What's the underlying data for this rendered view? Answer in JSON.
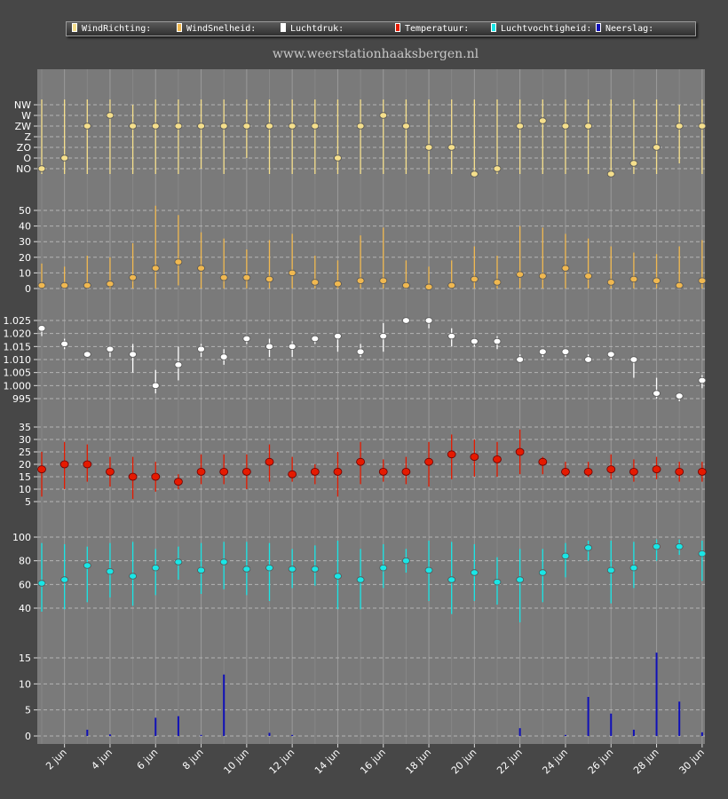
{
  "site_title": "www.weerstationhaaksbergen.nl",
  "legend": [
    {
      "label": "WindRichting:",
      "color": "#f5df8c"
    },
    {
      "label": "WindSnelheid:",
      "color": "#f0b850"
    },
    {
      "label": "Luchtdruk:",
      "color": "#ffffff"
    },
    {
      "label": "Temperatuur:",
      "color": "#e51a00"
    },
    {
      "label": "Luchtvochtigheid:",
      "color": "#19e6e6"
    },
    {
      "label": "Neerslag:",
      "color": "#1010b8"
    }
  ],
  "chart_data": {
    "type": "line",
    "x": [
      "1 jun",
      "2 jun",
      "3 jun",
      "4 jun",
      "5 jun",
      "6 jun",
      "7 jun",
      "8 jun",
      "9 jun",
      "10 jun",
      "11 jun",
      "12 jun",
      "13 jun",
      "14 jun",
      "15 jun",
      "16 jun",
      "17 jun",
      "18 jun",
      "19 jun",
      "20 jun",
      "21 jun",
      "22 jun",
      "23 jun",
      "24 jun",
      "25 jun",
      "26 jun",
      "27 jun",
      "28 jun",
      "29 jun",
      "30 jun"
    ],
    "x_tick_labels": [
      "2 jun",
      "4 jun",
      "6 jun",
      "8 jun",
      "10 jun",
      "12 jun",
      "14 jun",
      "16 jun",
      "18 jun",
      "20 jun",
      "22 jun",
      "24 jun",
      "26 jun",
      "28 jun",
      "30 jun"
    ],
    "panels": [
      {
        "name": "WindRichting",
        "type": "range-point",
        "color": "#f5df8c",
        "yticks": [
          "NO",
          "O",
          "ZO",
          "Z",
          "ZW",
          "W",
          "NW"
        ],
        "yrange": [
          0.5,
          7.5
        ],
        "values": [
          1,
          2,
          5,
          6,
          5,
          5,
          5,
          5,
          5,
          5,
          5,
          5,
          5,
          2,
          5,
          6,
          5,
          3,
          3,
          0.5,
          1,
          5,
          5.5,
          5,
          5,
          0.5,
          1.5,
          3,
          5,
          5
        ],
        "low": [
          0.5,
          0.5,
          0.5,
          0.5,
          0.5,
          0.5,
          0.5,
          1,
          0.5,
          2,
          0.5,
          0.5,
          0.5,
          0.5,
          0.5,
          0.5,
          0.5,
          0.5,
          0.5,
          0.5,
          0.5,
          0.5,
          0.5,
          0.5,
          0.5,
          0.5,
          0.5,
          0.5,
          1.5,
          0.5
        ],
        "high": [
          7.5,
          7.5,
          7.5,
          7.5,
          7,
          7.5,
          7.5,
          7.5,
          7.5,
          7.5,
          7.5,
          7.5,
          7.5,
          7.5,
          7.5,
          7.5,
          7.5,
          7.5,
          7.5,
          7.5,
          7.5,
          7.5,
          7.5,
          7.5,
          7.5,
          7.5,
          7.5,
          7.5,
          7,
          7.5
        ]
      },
      {
        "name": "WindSnelheid",
        "type": "range-point",
        "color": "#f0b850",
        "yticks": [
          0,
          10,
          20,
          30,
          40,
          50
        ],
        "yrange": [
          0,
          55
        ],
        "values": [
          2,
          2,
          2,
          3,
          7,
          13,
          17,
          13,
          7,
          7,
          6,
          10,
          4,
          3,
          5,
          5,
          2,
          1,
          2,
          6,
          4,
          9,
          8,
          13,
          8,
          4,
          6,
          5,
          2,
          5
        ],
        "low": [
          0,
          0,
          0,
          0,
          0,
          0,
          2,
          0,
          0,
          0,
          0,
          0,
          0,
          0,
          0,
          0,
          0,
          0,
          0,
          0,
          0,
          0,
          0,
          0,
          0,
          0,
          0,
          0,
          0,
          0
        ],
        "high": [
          16,
          14,
          21,
          20,
          29,
          53,
          47,
          36,
          32,
          25,
          31,
          35,
          21,
          18,
          34,
          39,
          18,
          14,
          18,
          27,
          21,
          40,
          39,
          35,
          32,
          27,
          23,
          22,
          27,
          31
        ]
      },
      {
        "name": "Luchtdruk",
        "type": "range-point",
        "color": "#ffffff",
        "yticks": [
          "995",
          "1.000",
          "1.005",
          "1.010",
          "1.015",
          "1.020",
          "1.025"
        ],
        "ytick_values": [
          995,
          1000,
          1005,
          1010,
          1015,
          1020,
          1025
        ],
        "yrange": [
          990,
          1030
        ],
        "values": [
          1022,
          1016,
          1012,
          1014,
          1012,
          1000,
          1008,
          1014,
          1011,
          1018,
          1015,
          1015,
          1018,
          1019,
          1013,
          1019,
          1025,
          1025,
          1019,
          1017,
          1017,
          1010,
          1013,
          1013,
          1010,
          1012,
          1010,
          997,
          996,
          1002
        ],
        "low": [
          1019,
          1014,
          1011,
          1011,
          1005,
          997,
          1002,
          1011,
          1008,
          1016,
          1011,
          1011,
          1016,
          1013,
          1011,
          1013,
          1024,
          1022,
          1015,
          1015,
          1014,
          1009,
          1011,
          1011,
          1009,
          1010,
          1003,
          995,
          994,
          999
        ],
        "high": [
          1023,
          1018,
          1013,
          1015,
          1016,
          1006,
          1015,
          1016,
          1014,
          1019,
          1018,
          1017,
          1019,
          1020,
          1016,
          1024,
          1026,
          1026,
          1022,
          1018,
          1019,
          1012,
          1014,
          1014,
          1012,
          1013,
          1011,
          1003,
          997,
          1004
        ]
      },
      {
        "name": "Temperatuur",
        "type": "range-point",
        "color": "#e51a00",
        "yticks": [
          5,
          10,
          15,
          20,
          25,
          30,
          35
        ],
        "yrange": [
          2,
          39
        ],
        "values": [
          18,
          20,
          20,
          17,
          15,
          15,
          13,
          17,
          17,
          17,
          21,
          16,
          17,
          17,
          21,
          17,
          17,
          21,
          24,
          23,
          22,
          25,
          21,
          17,
          17,
          18,
          17,
          18,
          17,
          17
        ],
        "low": [
          7,
          10,
          13,
          11,
          6,
          9,
          10,
          12,
          12,
          10,
          13,
          13,
          12,
          7,
          12,
          13,
          12,
          11,
          14,
          15,
          15,
          16,
          16,
          15,
          15,
          14,
          13,
          14,
          13,
          13
        ],
        "high": [
          25,
          29,
          28,
          23,
          23,
          21,
          16,
          24,
          24,
          24,
          28,
          23,
          20,
          25,
          29,
          22,
          23,
          29,
          32,
          30,
          29,
          34,
          23,
          21,
          21,
          24,
          22,
          23,
          21,
          21
        ]
      },
      {
        "name": "Luchtvochtigheid",
        "type": "range-point",
        "color": "#19e6e6",
        "yticks": [
          40,
          60,
          80,
          100
        ],
        "yrange": [
          20,
          103
        ],
        "values": [
          61,
          64,
          76,
          71,
          67,
          74,
          79,
          72,
          79,
          73,
          74,
          73,
          73,
          67,
          64,
          74,
          80,
          72,
          64,
          70,
          62,
          64,
          70,
          84,
          91,
          72,
          74,
          92,
          92,
          86
        ],
        "low": [
          37,
          39,
          45,
          49,
          42,
          51,
          64,
          52,
          56,
          51,
          46,
          57,
          59,
          39,
          39,
          57,
          70,
          46,
          35,
          46,
          43,
          28,
          45,
          66,
          80,
          44,
          57,
          80,
          85,
          63
        ],
        "high": [
          95,
          94,
          92,
          95,
          96,
          90,
          92,
          95,
          96,
          96,
          95,
          90,
          93,
          97,
          90,
          94,
          90,
          97,
          96,
          94,
          83,
          90,
          90,
          95,
          97,
          97,
          96,
          98,
          98,
          97
        ]
      },
      {
        "name": "Neerslag",
        "type": "bar",
        "color": "#1010b8",
        "yticks": [
          0,
          5,
          10,
          15
        ],
        "yrange": [
          -1.5,
          18
        ],
        "values": [
          0,
          0,
          1.2,
          0.3,
          0,
          3.5,
          3.8,
          0.2,
          11.8,
          0,
          0.6,
          0.2,
          0,
          0,
          0,
          0,
          0,
          0,
          0,
          0,
          0,
          1.5,
          0,
          0.2,
          7.5,
          4.3,
          1.2,
          16,
          6.6,
          0.7
        ]
      }
    ]
  }
}
